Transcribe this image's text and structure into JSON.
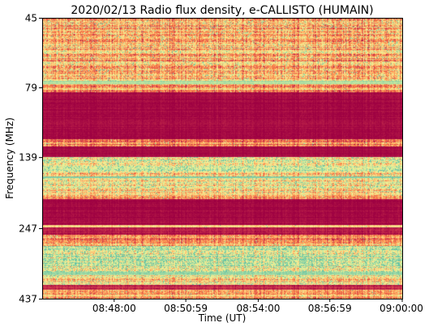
{
  "chart_data": {
    "type": "heatmap",
    "title": "2020/02/13  Radio flux density, e-CALLISTO (HUMAIN)",
    "xlabel": "Time (UT)",
    "ylabel": "Frequency (MHz)",
    "x_ticks": [
      "08:48:00",
      "08:50:59",
      "08:54:00",
      "08:56:59",
      "09:00:00"
    ],
    "y_ticks": [
      "45",
      "79",
      "139",
      "247",
      "437"
    ],
    "y_scale": "log",
    "x_range": [
      "08:45:00",
      "09:00:00"
    ],
    "y_range": [
      45,
      437
    ],
    "colormap": "Spectral_r",
    "colors": {
      "low": "#9e0142",
      "mid_low": "#d53e4f",
      "mid": "#f46d43",
      "mid_high": "#fdae61",
      "high": "#fee08b",
      "very_high": "#e6f598",
      "max": "#66c2a5"
    },
    "bands": [
      {
        "from": 45,
        "to": 75,
        "level": 0.45,
        "noise": 0.35,
        "speckle": 0.25
      },
      {
        "from": 75,
        "to": 77,
        "level": 0.85,
        "noise": 0.08,
        "speckle": 0.0
      },
      {
        "from": 77,
        "to": 82,
        "level": 0.4,
        "noise": 0.3,
        "speckle": 0.1
      },
      {
        "from": 82,
        "to": 120,
        "level": 0.02,
        "noise": 0.05,
        "speckle": 0.0
      },
      {
        "from": 120,
        "to": 127,
        "level": 0.35,
        "noise": 0.3,
        "speckle": 0.1
      },
      {
        "from": 127,
        "to": 138,
        "level": 0.02,
        "noise": 0.04,
        "speckle": 0.0
      },
      {
        "from": 138,
        "to": 150,
        "level": 0.65,
        "noise": 0.35,
        "speckle": 0.4
      },
      {
        "from": 150,
        "to": 156,
        "level": 0.75,
        "noise": 0.25,
        "speckle": 0.5
      },
      {
        "from": 156,
        "to": 162,
        "level": 0.55,
        "noise": 0.35,
        "speckle": 0.3
      },
      {
        "from": 162,
        "to": 164,
        "level": 0.95,
        "noise": 0.05,
        "speckle": 0.0
      },
      {
        "from": 164,
        "to": 185,
        "level": 0.6,
        "noise": 0.35,
        "speckle": 0.35
      },
      {
        "from": 185,
        "to": 195,
        "level": 0.45,
        "noise": 0.3,
        "speckle": 0.15
      },
      {
        "from": 195,
        "to": 240,
        "level": 0.02,
        "noise": 0.05,
        "speckle": 0.0
      },
      {
        "from": 240,
        "to": 245,
        "level": 0.55,
        "noise": 0.2,
        "speckle": 0.05
      },
      {
        "from": 245,
        "to": 260,
        "level": 0.05,
        "noise": 0.08,
        "speckle": 0.0
      },
      {
        "from": 260,
        "to": 285,
        "level": 0.4,
        "noise": 0.3,
        "speckle": 0.1
      },
      {
        "from": 285,
        "to": 350,
        "level": 0.7,
        "noise": 0.35,
        "speckle": 0.5
      },
      {
        "from": 350,
        "to": 360,
        "level": 0.9,
        "noise": 0.1,
        "speckle": 0.3
      },
      {
        "from": 360,
        "to": 390,
        "level": 0.55,
        "noise": 0.35,
        "speckle": 0.25
      },
      {
        "from": 390,
        "to": 405,
        "level": 0.08,
        "noise": 0.1,
        "speckle": 0.0
      },
      {
        "from": 405,
        "to": 437,
        "level": 0.4,
        "noise": 0.3,
        "speckle": 0.1
      }
    ]
  }
}
